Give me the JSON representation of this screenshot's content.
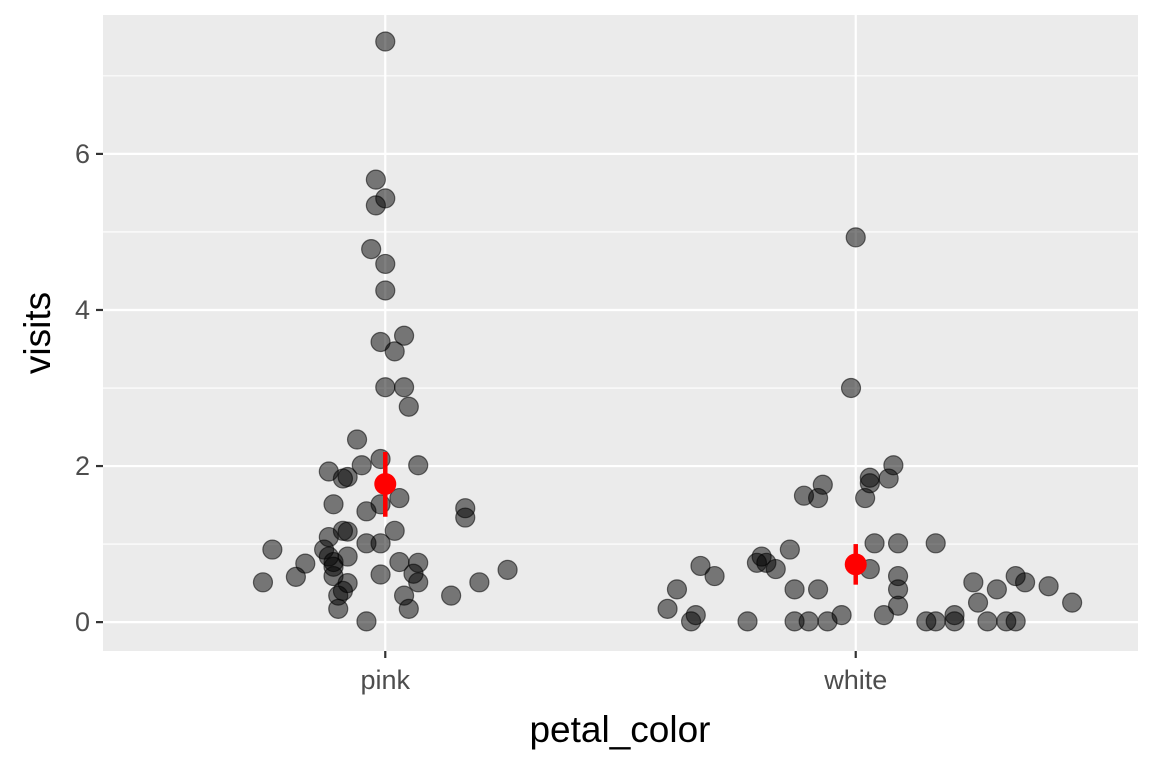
{
  "chart_data": {
    "type": "scatter",
    "title": "",
    "xlabel": "petal_color",
    "ylabel": "visits",
    "categories": [
      "pink",
      "white"
    ],
    "ylim": [
      -0.37,
      7.78
    ],
    "yticks": [
      0,
      2,
      4,
      6
    ],
    "ytick_labels": [
      "0",
      "2",
      "4",
      "6"
    ],
    "grid": true,
    "legend": "none",
    "colors": {
      "panel": "#ebebeb",
      "grid": "#ffffff",
      "point": "#000000",
      "summary": "#ff0000",
      "tick": "#333333"
    },
    "series": [
      {
        "category": "pink",
        "points": [
          {
            "x": 0.0,
            "y": 7.44
          },
          {
            "x": -0.02,
            "y": 5.67
          },
          {
            "x": 0.0,
            "y": 5.43
          },
          {
            "x": -0.02,
            "y": 5.34
          },
          {
            "x": -0.03,
            "y": 4.78
          },
          {
            "x": 0.0,
            "y": 4.59
          },
          {
            "x": 0.0,
            "y": 4.25
          },
          {
            "x": 0.04,
            "y": 3.67
          },
          {
            "x": -0.01,
            "y": 3.59
          },
          {
            "x": 0.02,
            "y": 3.47
          },
          {
            "x": 0.0,
            "y": 3.01
          },
          {
            "x": 0.04,
            "y": 3.01
          },
          {
            "x": 0.05,
            "y": 2.76
          },
          {
            "x": -0.06,
            "y": 2.34
          },
          {
            "x": -0.01,
            "y": 2.09
          },
          {
            "x": -0.05,
            "y": 2.01
          },
          {
            "x": 0.07,
            "y": 2.01
          },
          {
            "x": -0.12,
            "y": 1.93
          },
          {
            "x": -0.08,
            "y": 1.86
          },
          {
            "x": -0.09,
            "y": 1.84
          },
          {
            "x": 0.03,
            "y": 1.59
          },
          {
            "x": -0.01,
            "y": 1.51
          },
          {
            "x": -0.11,
            "y": 1.51
          },
          {
            "x": 0.17,
            "y": 1.46
          },
          {
            "x": -0.04,
            "y": 1.42
          },
          {
            "x": 0.17,
            "y": 1.34
          },
          {
            "x": 0.02,
            "y": 1.17
          },
          {
            "x": -0.09,
            "y": 1.17
          },
          {
            "x": -0.08,
            "y": 1.16
          },
          {
            "x": -0.12,
            "y": 1.09
          },
          {
            "x": -0.01,
            "y": 1.01
          },
          {
            "x": -0.04,
            "y": 1.01
          },
          {
            "x": -0.13,
            "y": 0.93
          },
          {
            "x": -0.24,
            "y": 0.93
          },
          {
            "x": -0.08,
            "y": 0.84
          },
          {
            "x": -0.12,
            "y": 0.84
          },
          {
            "x": -0.11,
            "y": 0.77
          },
          {
            "x": 0.03,
            "y": 0.77
          },
          {
            "x": 0.07,
            "y": 0.76
          },
          {
            "x": -0.17,
            "y": 0.75
          },
          {
            "x": -0.11,
            "y": 0.71
          },
          {
            "x": 0.26,
            "y": 0.67
          },
          {
            "x": 0.06,
            "y": 0.62
          },
          {
            "x": -0.01,
            "y": 0.61
          },
          {
            "x": -0.11,
            "y": 0.59
          },
          {
            "x": -0.19,
            "y": 0.58
          },
          {
            "x": -0.08,
            "y": 0.5
          },
          {
            "x": 0.07,
            "y": 0.51
          },
          {
            "x": 0.2,
            "y": 0.51
          },
          {
            "x": -0.26,
            "y": 0.51
          },
          {
            "x": -0.09,
            "y": 0.4
          },
          {
            "x": -0.1,
            "y": 0.34
          },
          {
            "x": 0.04,
            "y": 0.34
          },
          {
            "x": 0.14,
            "y": 0.34
          },
          {
            "x": -0.1,
            "y": 0.17
          },
          {
            "x": 0.05,
            "y": 0.17
          },
          {
            "x": -0.04,
            "y": 0.01
          }
        ],
        "summary": {
          "mean": 1.77,
          "low": 1.35,
          "high": 2.18
        }
      },
      {
        "category": "white",
        "points": [
          {
            "x": 0.0,
            "y": 4.93
          },
          {
            "x": -0.01,
            "y": 3.0
          },
          {
            "x": 0.08,
            "y": 2.01
          },
          {
            "x": 0.03,
            "y": 1.85
          },
          {
            "x": 0.07,
            "y": 1.84
          },
          {
            "x": 0.03,
            "y": 1.78
          },
          {
            "x": -0.07,
            "y": 1.76
          },
          {
            "x": -0.11,
            "y": 1.62
          },
          {
            "x": 0.02,
            "y": 1.59
          },
          {
            "x": -0.08,
            "y": 1.59
          },
          {
            "x": 0.04,
            "y": 1.01
          },
          {
            "x": 0.09,
            "y": 1.01
          },
          {
            "x": 0.17,
            "y": 1.01
          },
          {
            "x": -0.14,
            "y": 0.93
          },
          {
            "x": -0.2,
            "y": 0.84
          },
          {
            "x": -0.21,
            "y": 0.76
          },
          {
            "x": -0.19,
            "y": 0.76
          },
          {
            "x": -0.17,
            "y": 0.68
          },
          {
            "x": 0.03,
            "y": 0.68
          },
          {
            "x": -0.33,
            "y": 0.72
          },
          {
            "x": 0.09,
            "y": 0.59
          },
          {
            "x": -0.3,
            "y": 0.59
          },
          {
            "x": 0.34,
            "y": 0.59
          },
          {
            "x": 0.25,
            "y": 0.51
          },
          {
            "x": 0.36,
            "y": 0.51
          },
          {
            "x": 0.41,
            "y": 0.46
          },
          {
            "x": 0.09,
            "y": 0.42
          },
          {
            "x": -0.08,
            "y": 0.42
          },
          {
            "x": -0.38,
            "y": 0.42
          },
          {
            "x": -0.13,
            "y": 0.42
          },
          {
            "x": 0.3,
            "y": 0.42
          },
          {
            "x": 0.26,
            "y": 0.25
          },
          {
            "x": 0.46,
            "y": 0.25
          },
          {
            "x": 0.09,
            "y": 0.21
          },
          {
            "x": -0.4,
            "y": 0.17
          },
          {
            "x": 0.06,
            "y": 0.09
          },
          {
            "x": -0.34,
            "y": 0.09
          },
          {
            "x": -0.03,
            "y": 0.09
          },
          {
            "x": 0.21,
            "y": 0.09
          },
          {
            "x": -0.35,
            "y": 0.01
          },
          {
            "x": -0.23,
            "y": 0.01
          },
          {
            "x": -0.13,
            "y": 0.01
          },
          {
            "x": -0.1,
            "y": 0.01
          },
          {
            "x": -0.06,
            "y": 0.01
          },
          {
            "x": 0.15,
            "y": 0.01
          },
          {
            "x": 0.17,
            "y": 0.01
          },
          {
            "x": 0.21,
            "y": 0.01
          },
          {
            "x": 0.28,
            "y": 0.01
          },
          {
            "x": 0.32,
            "y": 0.01
          },
          {
            "x": 0.34,
            "y": 0.01
          }
        ],
        "summary": {
          "mean": 0.74,
          "low": 0.48,
          "high": 1.0
        }
      }
    ]
  }
}
